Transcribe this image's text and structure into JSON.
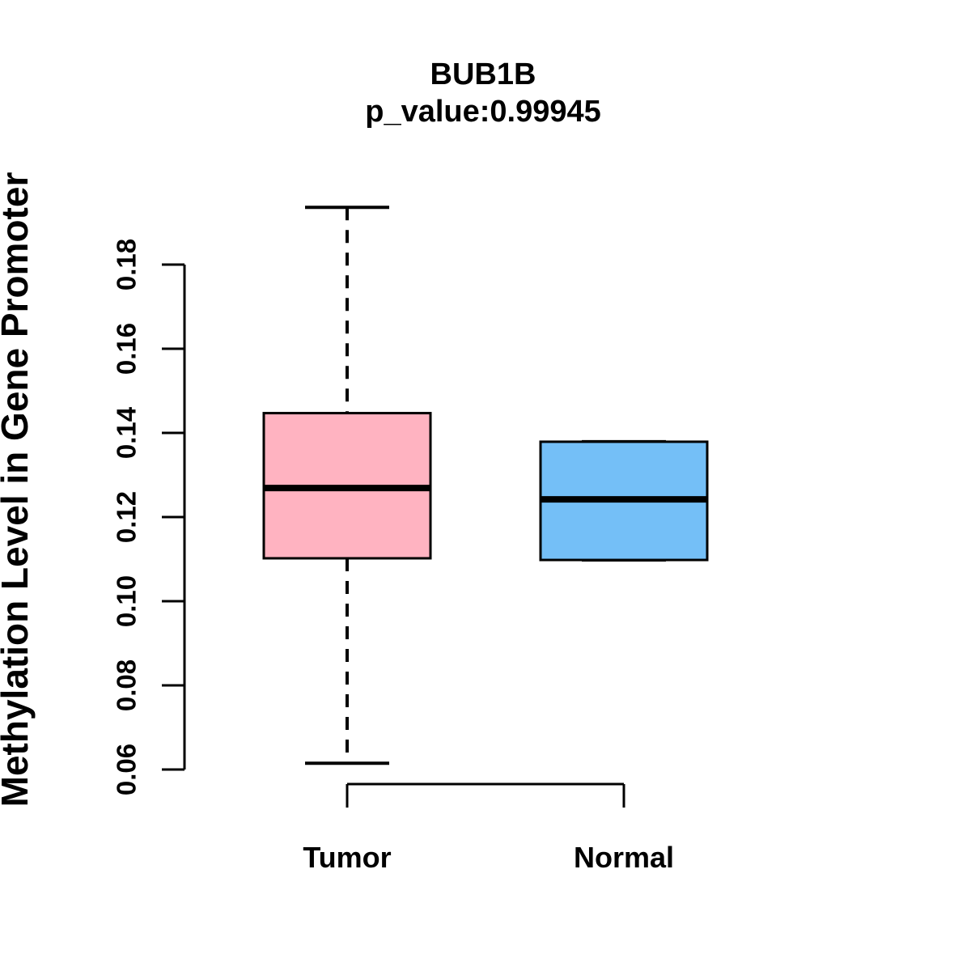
{
  "page": {
    "background": "#ffffff"
  },
  "chart_data": {
    "type": "boxplot",
    "title": "BUB1B",
    "subtitle": "p_value:0.99945",
    "ylabel": "Methylation Level in Gene Promoter",
    "xlabel": "",
    "categories": [
      "Tumor",
      "Normal"
    ],
    "ytick_labels": [
      "0.06",
      "0.08",
      "0.10",
      "0.12",
      "0.14",
      "0.16",
      "0.18"
    ],
    "ytick_values": [
      0.06,
      0.08,
      0.1,
      0.12,
      0.14,
      0.16,
      0.18
    ],
    "ylim": [
      0.06,
      0.18
    ],
    "grid": false,
    "legend": "none",
    "orientation": "vertical",
    "series": [
      {
        "name": "Tumor",
        "color": "#FFB3C1",
        "whisker_low": 0.0615,
        "q1": 0.1102,
        "median": 0.1269,
        "q3": 0.1447,
        "whisker_high": 0.1936
      },
      {
        "name": "Normal",
        "color": "#74BFF7",
        "whisker_low": 0.1098,
        "q1": 0.1098,
        "median": 0.1242,
        "q3": 0.1379,
        "whisker_high": 0.1379
      }
    ]
  },
  "colors": {
    "axis": "#000000",
    "box_border": "#000000",
    "median_line": "#000000",
    "tumor_fill": "#FFB3C1",
    "normal_fill": "#74BFF7"
  }
}
